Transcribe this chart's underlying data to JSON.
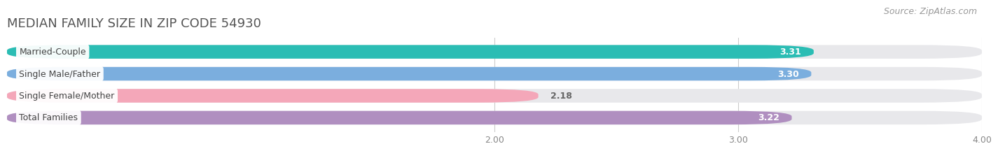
{
  "title": "MEDIAN FAMILY SIZE IN ZIP CODE 54930",
  "source": "Source: ZipAtlas.com",
  "categories": [
    "Married-Couple",
    "Single Male/Father",
    "Single Female/Mother",
    "Total Families"
  ],
  "values": [
    3.31,
    3.3,
    2.18,
    3.22
  ],
  "bar_colors": [
    "#2bbdb4",
    "#7baede",
    "#f4a7b9",
    "#b08fc0"
  ],
  "bar_height": 0.62,
  "xmin": 0.0,
  "xlim": [
    0.0,
    4.0
  ],
  "xticks": [
    2.0,
    3.0,
    4.0
  ],
  "xtick_labels": [
    "2.00",
    "3.00",
    "4.00"
  ],
  "bg_color": "#ffffff",
  "bar_bg_color": "#e8e8eb",
  "value_label_color": "#ffffff",
  "value_label_outside_color": "#666666",
  "title_fontsize": 13,
  "source_fontsize": 9,
  "label_fontsize": 9,
  "value_fontsize": 9
}
